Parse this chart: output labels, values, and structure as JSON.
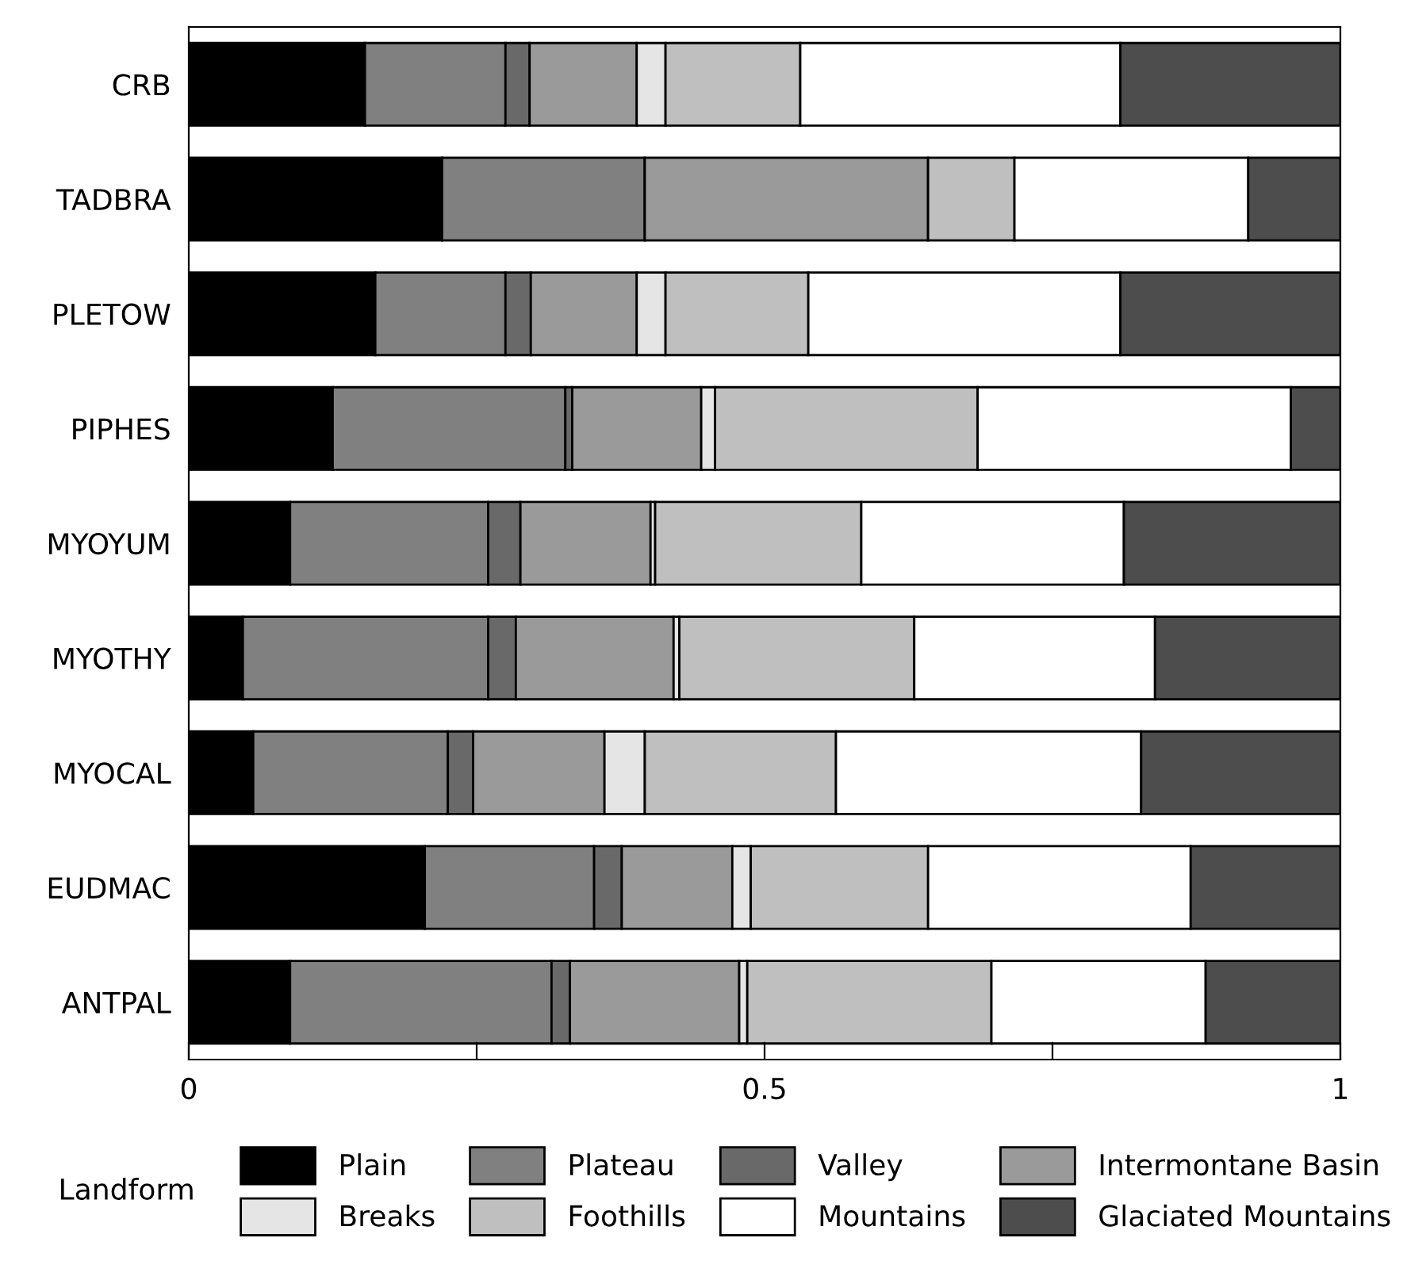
{
  "chart_data": {
    "type": "bar",
    "orientation": "horizontal",
    "stacked": true,
    "categories": [
      "CRB",
      "TADBRA",
      "PLETOW",
      "PIPHES",
      "MYOYUM",
      "MYOTHY",
      "MYOCAL",
      "EUDMAC",
      "ANTPAL"
    ],
    "series": [
      {
        "name": "Plain",
        "color": "#000000",
        "values": [
          0.153,
          0.22,
          0.162,
          0.125,
          0.088,
          0.047,
          0.056,
          0.205,
          0.088
        ]
      },
      {
        "name": "Plateau",
        "color": "#808080",
        "values": [
          0.122,
          0.176,
          0.113,
          0.202,
          0.172,
          0.213,
          0.169,
          0.147,
          0.227
        ]
      },
      {
        "name": "Valley",
        "color": "#696969",
        "values": [
          0.021,
          0,
          0.022,
          0.006,
          0.028,
          0.024,
          0.022,
          0.024,
          0.016
        ]
      },
      {
        "name": "Intermontane Basin",
        "color": "#9a9a9a",
        "values": [
          0.093,
          0.246,
          0.092,
          0.112,
          0.113,
          0.137,
          0.114,
          0.096,
          0.147
        ]
      },
      {
        "name": "Breaks",
        "color": "#e5e5e5",
        "values": [
          0.025,
          0,
          0.025,
          0.012,
          0.004,
          0.005,
          0.035,
          0.016,
          0.007
        ]
      },
      {
        "name": "Foothills",
        "color": "#bfbfbf",
        "values": [
          0.117,
          0.075,
          0.124,
          0.228,
          0.179,
          0.204,
          0.166,
          0.154,
          0.212
        ]
      },
      {
        "name": "Mountains",
        "color": "#ffffff",
        "values": [
          0.278,
          0.203,
          0.271,
          0.272,
          0.228,
          0.209,
          0.265,
          0.228,
          0.186
        ]
      },
      {
        "name": "Glaciated Mountains",
        "color": "#4d4d4d",
        "values": [
          0.191,
          0.08,
          0.191,
          0.043,
          0.188,
          0.161,
          0.173,
          0.13,
          0.117
        ]
      }
    ],
    "xlim": [
      0,
      1
    ],
    "xticks": [
      0,
      {
        "value": 0.25,
        "label": null
      },
      0.5,
      {
        "value": 0.75,
        "label": null
      },
      1
    ],
    "legend": "bottom",
    "legend_title": "Landform",
    "grid": false
  }
}
